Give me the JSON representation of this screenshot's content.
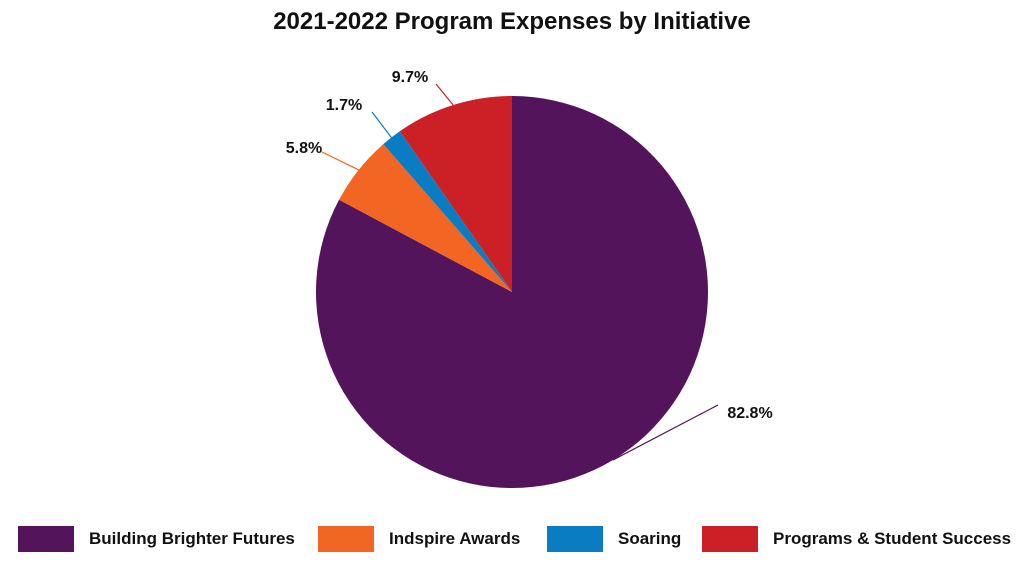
{
  "chart_data": {
    "type": "pie",
    "title": "2021-2022 Program Expenses by Initiative",
    "start_angle_deg": 0,
    "direction": "clockwise",
    "legend_position": "bottom",
    "slices": [
      {
        "name": "Building Brighter Futures",
        "value": 82.8,
        "label": "82.8%",
        "color": "#54145B"
      },
      {
        "name": "Indspire Awards",
        "value": 5.8,
        "label": "5.8%",
        "color": "#F26522"
      },
      {
        "name": "Soaring",
        "value": 1.7,
        "label": "1.7%",
        "color": "#0A7CC1"
      },
      {
        "name": "Programs & Student Success",
        "value": 9.7,
        "label": "9.7%",
        "color": "#CC2027"
      }
    ]
  }
}
